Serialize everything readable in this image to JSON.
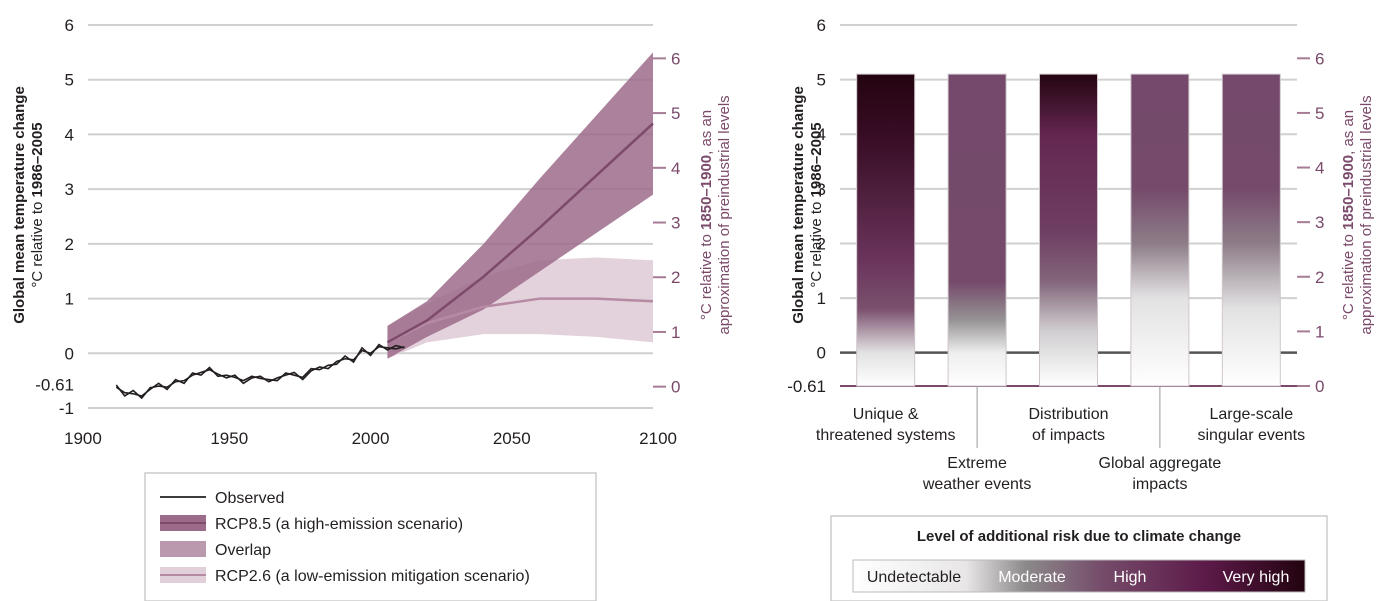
{
  "chart_data": [
    {
      "type": "area",
      "xlabel": "",
      "ylabel": {
        "main": "Global mean temperature change",
        "sub_prefix": "°C relative to ",
        "sub_bold": "1986–2005"
      },
      "y2label": {
        "line1_prefix": "°C relative to ",
        "line1_bold": "1850–1900",
        "line1_suffix": ", as an",
        "line2": "approximation of preindustrial levels"
      },
      "xlim": [
        1900,
        2100
      ],
      "ylim": [
        -1,
        6
      ],
      "x_ticks": [
        "1900",
        "1950",
        "2000",
        "2050",
        "2100"
      ],
      "y_ticks": [
        "-1",
        "0",
        "1",
        "2",
        "3",
        "4",
        "5",
        "6"
      ],
      "y_extra_tick": "-0.61",
      "y2_offset": 0.61,
      "y2_ticks": [
        "0",
        "1",
        "2",
        "3",
        "4",
        "5",
        "6"
      ],
      "series": [
        {
          "name": "Observed",
          "color": "#231f20",
          "x": [
            1910,
            1913,
            1916,
            1919,
            1922,
            1925,
            1928,
            1931,
            1934,
            1937,
            1940,
            1943,
            1946,
            1949,
            1952,
            1955,
            1958,
            1961,
            1964,
            1967,
            1970,
            1973,
            1976,
            1979,
            1982,
            1985,
            1988,
            1991,
            1994,
            1997,
            2000,
            2003,
            2006,
            2009,
            2012
          ],
          "y": [
            -0.58,
            -0.78,
            -0.68,
            -0.82,
            -0.63,
            -0.6,
            -0.62,
            -0.52,
            -0.5,
            -0.4,
            -0.35,
            -0.3,
            -0.38,
            -0.45,
            -0.4,
            -0.55,
            -0.45,
            -0.42,
            -0.52,
            -0.45,
            -0.4,
            -0.35,
            -0.48,
            -0.32,
            -0.25,
            -0.28,
            -0.15,
            -0.1,
            -0.12,
            0.05,
            0.0,
            0.12,
            0.1,
            0.08,
            0.12
          ]
        },
        {
          "name": "Observed",
          "color": "#231f20",
          "x": [
            1910,
            1913,
            1916,
            1919,
            1922,
            1925,
            1928,
            1931,
            1934,
            1937,
            1940,
            1943,
            1946,
            1949,
            1952,
            1955,
            1958,
            1961,
            1964,
            1967,
            1970,
            1973,
            1976,
            1979,
            1982,
            1985,
            1988,
            1991,
            1994,
            1997,
            2000,
            2003,
            2006,
            2009,
            2012
          ],
          "y": [
            -0.62,
            -0.72,
            -0.74,
            -0.78,
            -0.66,
            -0.55,
            -0.66,
            -0.48,
            -0.55,
            -0.36,
            -0.4,
            -0.26,
            -0.42,
            -0.4,
            -0.44,
            -0.5,
            -0.42,
            -0.46,
            -0.48,
            -0.5,
            -0.36,
            -0.4,
            -0.44,
            -0.28,
            -0.3,
            -0.22,
            -0.2,
            -0.05,
            -0.16,
            0.1,
            -0.04,
            0.16,
            0.06,
            0.14,
            0.1
          ]
        },
        {
          "name": "RCP8.5 (a high-emission scenario)",
          "color": "#9c6b8a",
          "line_color": "#7d4a6b",
          "x": [
            2006,
            2020,
            2040,
            2060,
            2080,
            2100
          ],
          "mean": [
            0.2,
            0.6,
            1.4,
            2.3,
            3.25,
            4.2
          ],
          "low": [
            -0.1,
            0.3,
            0.8,
            1.5,
            2.2,
            2.9
          ],
          "high": [
            0.5,
            0.95,
            2.0,
            3.2,
            4.35,
            5.5
          ]
        },
        {
          "name": "RCP2.6 (a low-emission mitigation scenario)",
          "color": "#e1d0d9",
          "line_color": "#b78aa4",
          "x": [
            2006,
            2020,
            2040,
            2060,
            2080,
            2100
          ],
          "mean": [
            0.2,
            0.55,
            0.85,
            1.0,
            1.0,
            0.95
          ],
          "low": [
            -0.1,
            0.2,
            0.35,
            0.35,
            0.3,
            0.2
          ],
          "high": [
            0.5,
            0.9,
            1.4,
            1.7,
            1.75,
            1.7
          ]
        }
      ],
      "legend": {
        "placement": "bottom",
        "items": [
          {
            "label": "Observed",
            "kind": "line",
            "color": "#231f20"
          },
          {
            "label": "RCP8.5 (a high-emission scenario)",
            "kind": "band",
            "color": "#9c6b8a",
            "line_color": "#7d4a6b"
          },
          {
            "label": "Overlap",
            "kind": "band",
            "color": "#ba98ad"
          },
          {
            "label": "RCP2.6 (a low-emission mitigation scenario)",
            "kind": "band",
            "color": "#e1d0d9",
            "line_color": "#b78aa4"
          }
        ]
      }
    },
    {
      "type": "heatmap",
      "ylabel": {
        "main": "Global mean temperature change",
        "sub_prefix": "°C relative to ",
        "sub_bold": "1986–2005"
      },
      "y2label": {
        "line1_prefix": "°C relative to ",
        "line1_bold": "1850–1900",
        "line1_suffix": ", as an",
        "line2": "approximation of preindustrial levels"
      },
      "ylim": [
        -0.61,
        6
      ],
      "y_ticks": [
        "0",
        "1",
        "2",
        "3",
        "4",
        "5",
        "6"
      ],
      "y_extra_tick": "-0.61",
      "y2_offset": 0.61,
      "y2_ticks": [
        "0",
        "1",
        "2",
        "3",
        "4",
        "5",
        "6"
      ],
      "bar_top": 5.1,
      "categories": [
        {
          "label": [
            "Unique &",
            "threatened systems"
          ],
          "position": "above"
        },
        {
          "label": [
            "Extreme",
            "weather events"
          ],
          "position": "below"
        },
        {
          "label": [
            "Distribution",
            "of impacts"
          ],
          "position": "above"
        },
        {
          "label": [
            "Global aggregate",
            "impacts"
          ],
          "position": "below"
        },
        {
          "label": [
            "Large-scale",
            "singular events"
          ],
          "position": "above"
        }
      ],
      "risk_stops": [
        [
          [
            -0.61,
            0.0
          ],
          [
            0.0,
            0.2
          ],
          [
            0.8,
            0.55
          ],
          [
            1.7,
            0.78
          ],
          [
            4.0,
            0.95
          ],
          [
            5.1,
            1.0
          ]
        ],
        [
          [
            -0.61,
            0.0
          ],
          [
            0.0,
            0.15
          ],
          [
            0.6,
            0.4
          ],
          [
            1.3,
            0.7
          ],
          [
            5.1,
            0.72
          ]
        ],
        [
          [
            -0.61,
            0.0
          ],
          [
            0.4,
            0.25
          ],
          [
            1.3,
            0.5
          ],
          [
            2.2,
            0.75
          ],
          [
            4.0,
            0.82
          ],
          [
            5.1,
            1.0
          ]
        ],
        [
          [
            -0.61,
            0.0
          ],
          [
            1.0,
            0.2
          ],
          [
            2.0,
            0.45
          ],
          [
            3.0,
            0.7
          ],
          [
            5.1,
            0.72
          ]
        ],
        [
          [
            -0.61,
            0.0
          ],
          [
            0.8,
            0.2
          ],
          [
            2.0,
            0.45
          ],
          [
            3.0,
            0.7
          ],
          [
            5.1,
            0.72
          ]
        ]
      ],
      "legend": {
        "title": "Level of additional risk due to climate change",
        "levels": [
          "Undetectable",
          "Moderate",
          "High",
          "Very high"
        ]
      }
    }
  ]
}
